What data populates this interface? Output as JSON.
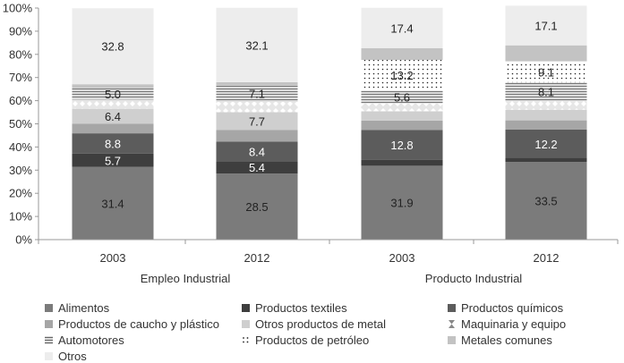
{
  "chart_data": {
    "type": "bar",
    "stacked": true,
    "percent": true,
    "groups": [
      {
        "label": "Empleo Industrial",
        "categories": [
          "2003",
          "2012"
        ]
      },
      {
        "label": "Producto Industrial",
        "categories": [
          "2003",
          "2012"
        ]
      }
    ],
    "categories": [
      "2003",
      "2012",
      "2003",
      "2012"
    ],
    "yticks": [
      "0%",
      "10%",
      "20%",
      "30%",
      "40%",
      "50%",
      "60%",
      "70%",
      "80%",
      "90%",
      "100%"
    ],
    "ylim": [
      0,
      100
    ],
    "series": [
      {
        "name": "Alimentos",
        "color": "#7b7b7b",
        "pattern": "solid",
        "values": [
          31.4,
          28.5,
          31.9,
          33.5
        ],
        "labels": [
          "31.4",
          "28.5",
          "31.9",
          "33.5"
        ]
      },
      {
        "name": "Productos textiles",
        "color": "#3e3e3e",
        "pattern": "solid",
        "values": [
          5.7,
          5.4,
          2.6,
          1.8
        ],
        "labels": [
          "5.7",
          "5.4",
          "",
          ""
        ]
      },
      {
        "name": "Productos químicos",
        "color": "#5c5c5c",
        "pattern": "solid",
        "values": [
          8.8,
          8.4,
          12.8,
          12.2
        ],
        "labels": [
          "8.8",
          "8.4",
          "12.8",
          "12.2"
        ]
      },
      {
        "name": "Productos de caucho y plástico",
        "color": "#a6a6a6",
        "pattern": "solid",
        "values": [
          4.2,
          5.0,
          4.1,
          4.0
        ],
        "labels": [
          "",
          "",
          "",
          ""
        ]
      },
      {
        "name": "Otros productos de metal",
        "color": "#cfcfcf",
        "pattern": "solid",
        "values": [
          6.4,
          7.7,
          4.0,
          4.6
        ],
        "labels": [
          "6.4",
          "7.7",
          "",
          ""
        ]
      },
      {
        "name": "Maquinaria y equipo",
        "color": "#e6e6e6",
        "pattern": "diamond",
        "values": [
          4.0,
          4.5,
          3.4,
          3.7
        ],
        "labels": [
          "",
          "",
          "",
          ""
        ]
      },
      {
        "name": "Automotores",
        "color": "#d8d8d8",
        "pattern": "hlines",
        "values": [
          5.0,
          7.1,
          5.6,
          8.1
        ],
        "labels": [
          "5.0",
          "7.1",
          "5.6",
          "8.1"
        ]
      },
      {
        "name": "Productos de petróleo",
        "color": "#ffffff",
        "pattern": "dots",
        "values": [
          0.0,
          0.0,
          13.2,
          9.1
        ],
        "labels": [
          "",
          "",
          "13.2",
          "9.1"
        ]
      },
      {
        "name": "Metales comunes",
        "color": "#c3c3c3",
        "pattern": "solid",
        "values": [
          1.6,
          1.4,
          5.1,
          6.9
        ],
        "labels": [
          "",
          "",
          "",
          ""
        ]
      },
      {
        "name": "Otros",
        "color": "#ededed",
        "pattern": "solid",
        "values": [
          32.8,
          32.1,
          17.4,
          17.1
        ],
        "labels": [
          "32.8",
          "32.1",
          "17.4",
          "17.1"
        ]
      }
    ],
    "title": "",
    "xlabel": "",
    "ylabel": "",
    "legend_position": "bottom"
  }
}
